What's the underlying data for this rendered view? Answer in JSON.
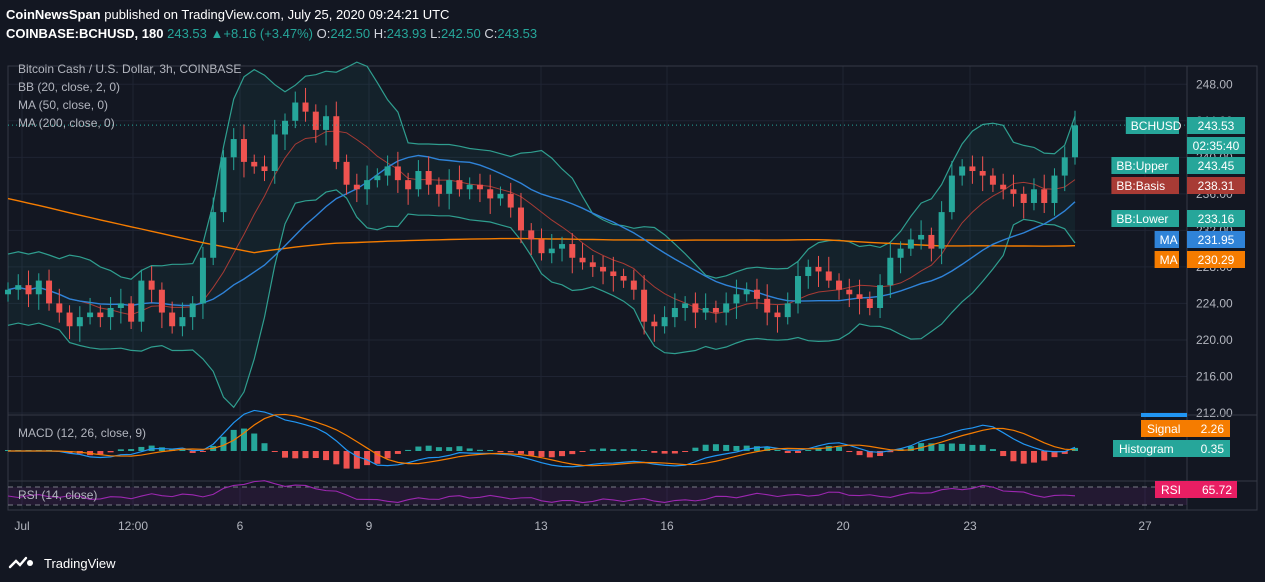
{
  "header": {
    "publisher": "CoinNewsSpan",
    "published_text": "published on TradingView.com, July 25, 2020 09:24:21 UTC",
    "symbol": "COINBASE:BCHUSD, 180",
    "last": "243.53",
    "change": "+8.16 (+3.47%)",
    "o_label": "O:",
    "o": "242.50",
    "h_label": "H:",
    "h": "243.93",
    "l_label": "L:",
    "l": "242.50",
    "c_label": "C:",
    "c": "243.53"
  },
  "legend": {
    "title": "Bitcoin Cash / U.S. Dollar, 3h, COINBASE",
    "bb": "BB (20, close, 2, 0)",
    "ma50": "MA (50, close, 0)",
    "ma200": "MA (200, close, 0)",
    "macd": "MACD (12, 26, close, 9)",
    "rsi": "RSI (14, close)"
  },
  "footer": {
    "brand": "TradingView"
  },
  "colors": {
    "up": "#26a69a",
    "down": "#ef5350",
    "bb": "#2f9e8f",
    "ma50": "#2f83d8",
    "ma200": "#f57c00",
    "basis": "#a83b35",
    "rsi": "#9c27b0",
    "signal": "#f57c00"
  },
  "chart_data": {
    "type": "candlestick",
    "title": "Bitcoin Cash / U.S. Dollar, 3h, COINBASE",
    "price_axis": {
      "ticks": [
        "248.00",
        "244.00",
        "240.00",
        "236.00",
        "232.00",
        "228.00",
        "224.00",
        "220.00",
        "216.00",
        "212.00"
      ],
      "range": [
        212,
        250
      ]
    },
    "x_ticks": [
      "Jul",
      "12:00",
      "6",
      "9",
      "13",
      "16",
      "20",
      "23",
      "27"
    ],
    "price_labels": [
      {
        "label": "BCHUSD",
        "value": "243.53",
        "color": "#26a69a"
      },
      {
        "label": "",
        "value": "02:35:40",
        "color": "#26a69a"
      },
      {
        "label": "BB:Upper",
        "value": "243.45",
        "color": "#26a69a"
      },
      {
        "label": "BB:Basis",
        "value": "238.31",
        "color": "#a83b35"
      },
      {
        "label": "BB:Lower",
        "value": "233.16",
        "color": "#26a69a"
      },
      {
        "label": "MA",
        "value": "231.95",
        "color": "#2f83d8"
      },
      {
        "label": "MA",
        "value": "230.29",
        "color": "#f57c00"
      }
    ],
    "macd_labels": [
      {
        "label": "Signal",
        "value": "2.26",
        "color": "#f57c00"
      },
      {
        "label": "Histogram",
        "value": "0.35",
        "color": "#26a69a"
      }
    ],
    "rsi_label": {
      "label": "RSI",
      "value": "65.72",
      "color": "#e91e63"
    },
    "close_series": [
      225.5,
      226.0,
      225.0,
      226.5,
      224.0,
      223.0,
      221.5,
      222.5,
      223.0,
      222.5,
      223.5,
      224.0,
      222.0,
      226.5,
      225.5,
      223.0,
      221.5,
      222.5,
      224.0,
      229.0,
      234.0,
      240.0,
      242.0,
      239.5,
      239.0,
      238.5,
      242.5,
      244.0,
      246.0,
      245.0,
      243.0,
      244.5,
      239.5,
      237.0,
      236.5,
      237.5,
      238.0,
      239.0,
      237.5,
      236.5,
      238.5,
      237.0,
      236.0,
      237.5,
      236.5,
      237.0,
      236.5,
      235.5,
      236.0,
      234.5,
      232.0,
      231.0,
      229.5,
      230.0,
      230.5,
      229.0,
      228.5,
      228.0,
      227.5,
      227.0,
      226.5,
      225.5,
      222.0,
      221.5,
      222.5,
      223.5,
      224.0,
      223.0,
      223.5,
      223.0,
      224.0,
      225.0,
      225.5,
      224.5,
      223.0,
      222.5,
      224.0,
      227.0,
      228.0,
      227.5,
      226.5,
      225.5,
      225.0,
      224.5,
      223.5,
      226.0,
      229.0,
      230.0,
      231.0,
      231.5,
      230.0,
      234.0,
      238.0,
      239.0,
      238.5,
      238.0,
      237.0,
      236.5,
      236.0,
      235.0,
      236.5,
      235.0,
      238.0,
      240.0,
      243.5
    ]
  }
}
